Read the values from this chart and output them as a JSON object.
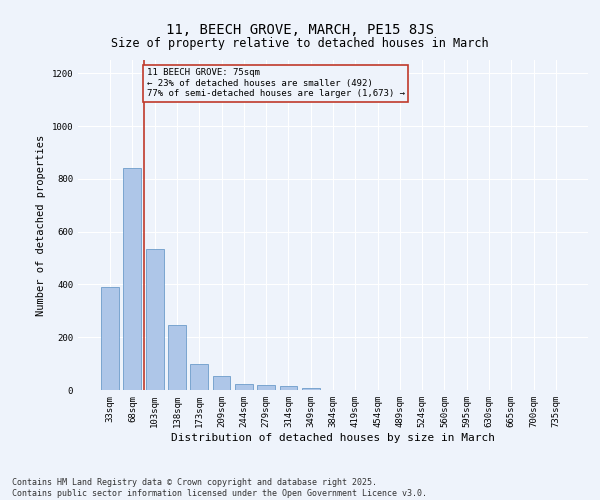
{
  "title": "11, BEECH GROVE, MARCH, PE15 8JS",
  "subtitle": "Size of property relative to detached houses in March",
  "xlabel": "Distribution of detached houses by size in March",
  "ylabel": "Number of detached properties",
  "categories": [
    "33sqm",
    "68sqm",
    "103sqm",
    "138sqm",
    "173sqm",
    "209sqm",
    "244sqm",
    "279sqm",
    "314sqm",
    "349sqm",
    "384sqm",
    "419sqm",
    "454sqm",
    "489sqm",
    "524sqm",
    "560sqm",
    "595sqm",
    "630sqm",
    "665sqm",
    "700sqm",
    "735sqm"
  ],
  "values": [
    390,
    840,
    535,
    248,
    100,
    52,
    22,
    18,
    14,
    8,
    0,
    0,
    0,
    0,
    0,
    0,
    0,
    0,
    0,
    0,
    0
  ],
  "bar_color": "#aec6e8",
  "bar_edge_color": "#5a8fc2",
  "vline_x": 1.5,
  "vline_color": "#c0392b",
  "annotation_text": "11 BEECH GROVE: 75sqm\n← 23% of detached houses are smaller (492)\n77% of semi-detached houses are larger (1,673) →",
  "annotation_box_color": "#c0392b",
  "ylim": [
    0,
    1250
  ],
  "yticks": [
    0,
    200,
    400,
    600,
    800,
    1000,
    1200
  ],
  "background_color": "#eef3fb",
  "grid_color": "#ffffff",
  "footer_text": "Contains HM Land Registry data © Crown copyright and database right 2025.\nContains public sector information licensed under the Open Government Licence v3.0.",
  "title_fontsize": 10,
  "subtitle_fontsize": 8.5,
  "xlabel_fontsize": 8,
  "ylabel_fontsize": 7.5,
  "tick_fontsize": 6.5,
  "annotation_fontsize": 6.5,
  "footer_fontsize": 6
}
